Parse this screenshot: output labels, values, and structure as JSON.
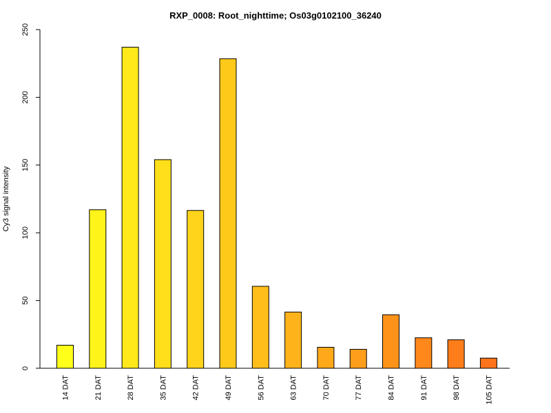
{
  "chart_data": {
    "type": "bar",
    "title": "RXP_0008: Root_nighttime; Os03g0102100_36240",
    "xlabel": "",
    "ylabel": "Cy3 signal intensity",
    "ylim": [
      0,
      250
    ],
    "yticks": [
      0,
      50,
      100,
      150,
      200,
      250
    ],
    "grid": false,
    "categories": [
      "14 DAT",
      "21 DAT",
      "28 DAT",
      "35 DAT",
      "42 DAT",
      "49 DAT",
      "56 DAT",
      "63 DAT",
      "70 DAT",
      "77 DAT",
      "84 DAT",
      "91 DAT",
      "98 DAT",
      "105 DAT"
    ],
    "values": [
      17,
      117,
      237,
      154,
      116.5,
      228.5,
      60.5,
      41.5,
      15.5,
      14,
      39.5,
      22.5,
      21,
      7.5
    ],
    "colors": [
      "#FFFF1A",
      "#FFF41A",
      "#FFE91A",
      "#FFDE1A",
      "#FFD41A",
      "#FFC91A",
      "#FFBE1A",
      "#FFB31A",
      "#FFA81A",
      "#FF9E1A",
      "#FF931A",
      "#FF881A",
      "#FF7D1A",
      "#FF731A"
    ]
  }
}
